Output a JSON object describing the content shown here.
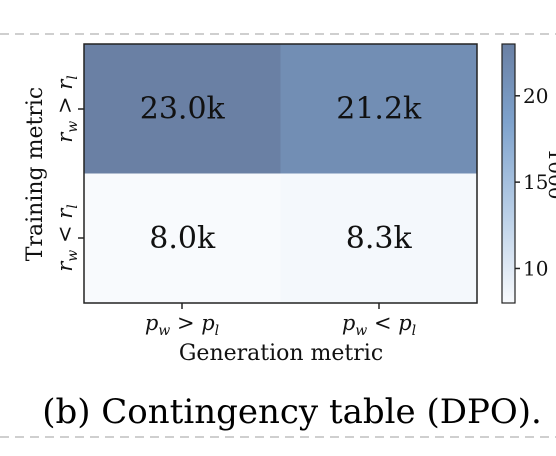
{
  "caption": "(b) Contingency table (DPO).",
  "chart_data": {
    "type": "heatmap",
    "xlabel": "Generation metric",
    "ylabel": "Training metric",
    "x_categories": [
      "p_w > p_l",
      "p_w < p_l"
    ],
    "y_categories": [
      "r_w > r_l",
      "r_w < r_l"
    ],
    "values": [
      [
        23.0,
        21.2
      ],
      [
        8.0,
        8.3
      ]
    ],
    "cell_labels": [
      [
        "23.0k",
        "21.2k"
      ],
      [
        "8.0k",
        "8.3k"
      ]
    ],
    "colorbar": {
      "min": 8.0,
      "max": 23.0,
      "ticks": [
        10,
        15,
        20
      ],
      "tick_labels": [
        "10",
        "15",
        "20"
      ],
      "label": "1000",
      "colors": [
        "#f8fafd",
        "#bcd1e8",
        "#7ea2cc",
        "#6a80a4"
      ]
    }
  }
}
